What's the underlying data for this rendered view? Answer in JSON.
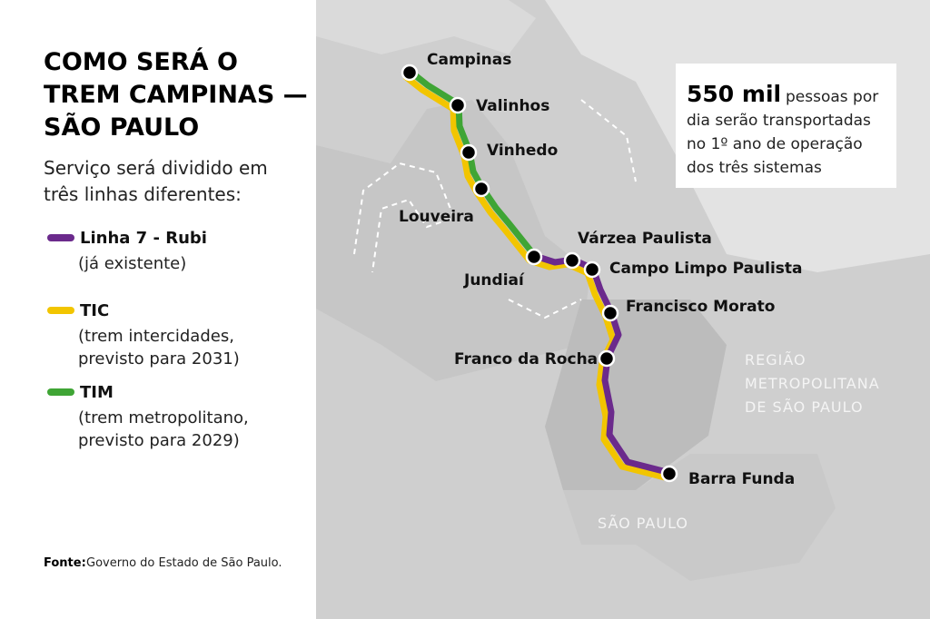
{
  "header": {
    "title_lines": [
      "COMO SERÁ O",
      "TREM CAMPINAS —",
      "SÃO PAULO"
    ],
    "subtitle_lines": [
      "Serviço será dividido em",
      "três linhas diferentes:"
    ]
  },
  "legend": [
    {
      "name": "Linha 7 - Rubi",
      "color": "#6b2a8c",
      "note_lines": [
        "(já existente)"
      ]
    },
    {
      "name": "TIC",
      "color": "#f2c500",
      "note_lines": [
        "(trem intercidades,",
        "previsto para 2031)"
      ]
    },
    {
      "name": "TIM",
      "color": "#3fa535",
      "note_lines": [
        "(trem metropolitano,",
        "previsto para 2029)"
      ]
    }
  ],
  "source": {
    "label": "Fonte:",
    "text": "Governo do Estado de São Paulo."
  },
  "callout": {
    "highlight": "550 mil",
    "lines": [
      "pessoas por",
      "dia serão transportadas",
      "no 1º ano de operação",
      "dos três sistemas"
    ]
  },
  "regions": {
    "metro_lines": [
      "REGIÃO",
      "METROPOLITANA",
      "DE SÃO PAULO"
    ],
    "city": "SÃO PAULO"
  },
  "stations": [
    "Campinas",
    "Valinhos",
    "Vinhedo",
    "Louveira",
    "Jundiaí",
    "Várzea Paulista",
    "Campo Limpo Paulista",
    "Francisco Morato",
    "Franco da Rocha",
    "Barra Funda"
  ]
}
